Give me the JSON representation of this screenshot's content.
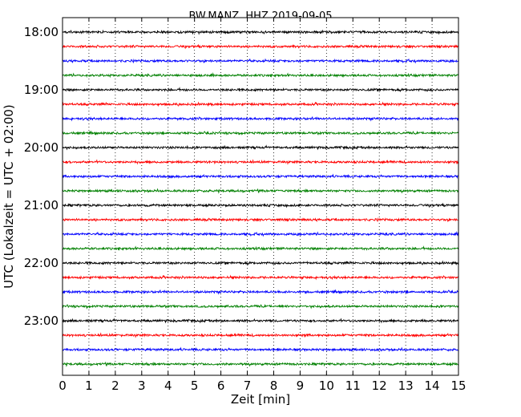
{
  "chart_data": {
    "type": "line",
    "title": "BW.MANZ..HHZ 2019-09-05",
    "xlabel": "Zeit  [min]",
    "ylabel": "UTC (Lokalzeit = UTC + 02:00)",
    "xlim": [
      0,
      15
    ],
    "x_ticks": [
      "0",
      "1",
      "2",
      "3",
      "4",
      "5",
      "6",
      "7",
      "8",
      "9",
      "10",
      "11",
      "12",
      "13",
      "14",
      "15"
    ],
    "y_tick_labels": [
      "18:00",
      "19:00",
      "20:00",
      "21:00",
      "22:00",
      "23:00"
    ],
    "grid": "x dotted",
    "trace_interval_minutes": 15,
    "traces_start": "18:00",
    "trace_colors": [
      "#000000",
      "#ff0000",
      "#0000ff",
      "#008000"
    ],
    "series": [
      {
        "start": "18:00",
        "color": "#000000"
      },
      {
        "start": "18:15",
        "color": "#ff0000"
      },
      {
        "start": "18:30",
        "color": "#0000ff"
      },
      {
        "start": "18:45",
        "color": "#008000"
      },
      {
        "start": "19:00",
        "color": "#000000"
      },
      {
        "start": "19:15",
        "color": "#ff0000"
      },
      {
        "start": "19:30",
        "color": "#0000ff"
      },
      {
        "start": "19:45",
        "color": "#008000"
      },
      {
        "start": "20:00",
        "color": "#000000"
      },
      {
        "start": "20:15",
        "color": "#ff0000"
      },
      {
        "start": "20:30",
        "color": "#0000ff"
      },
      {
        "start": "20:45",
        "color": "#008000"
      },
      {
        "start": "21:00",
        "color": "#000000"
      },
      {
        "start": "21:15",
        "color": "#ff0000"
      },
      {
        "start": "21:30",
        "color": "#0000ff"
      },
      {
        "start": "21:45",
        "color": "#008000"
      },
      {
        "start": "22:00",
        "color": "#000000"
      },
      {
        "start": "22:15",
        "color": "#ff0000"
      },
      {
        "start": "22:30",
        "color": "#0000ff"
      },
      {
        "start": "22:45",
        "color": "#008000"
      },
      {
        "start": "23:00",
        "color": "#000000"
      },
      {
        "start": "23:15",
        "color": "#ff0000"
      },
      {
        "start": "23:30",
        "color": "#0000ff"
      },
      {
        "start": "23:45",
        "color": "#008000"
      }
    ]
  }
}
